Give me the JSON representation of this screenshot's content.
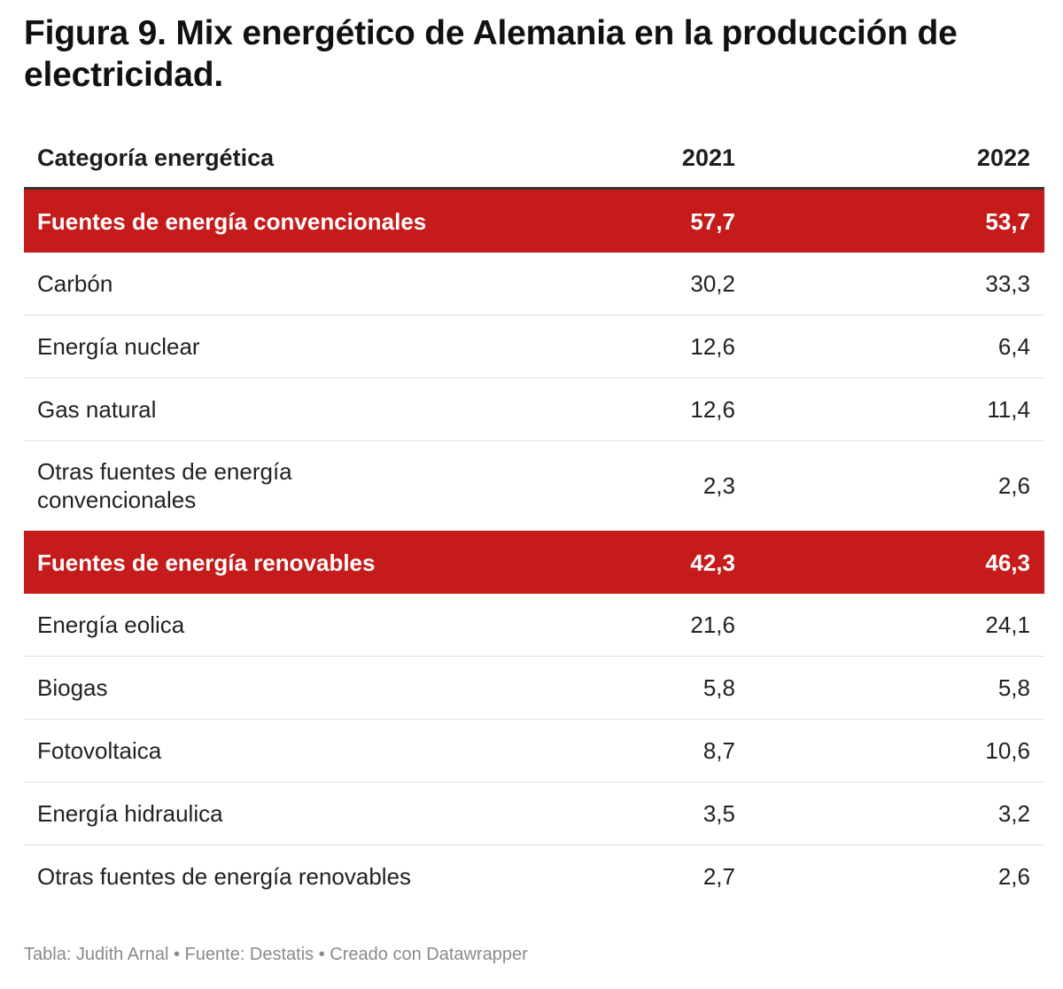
{
  "title": "Figura 9. Mix energético de Alemania en la producción de electricidad.",
  "footer": "Tabla: Judith Arnal • Fuente: Destatis • Creado con Datawrapper",
  "colors": {
    "group_row_background": "#c61b1b",
    "group_row_text": "#ffffff",
    "footer_text": "#8a8a8a"
  },
  "chart_data": {
    "type": "table",
    "title": "Figura 9. Mix energético de Alemania en la producción de electricidad.",
    "columns": [
      "Categoría energética",
      "2021",
      "2022"
    ],
    "rows": [
      {
        "category": "Fuentes de energía convencionales",
        "y2021": "57,7",
        "y2022": "53,7",
        "group": true
      },
      {
        "category": "Carbón",
        "y2021": "30,2",
        "y2022": "33,3",
        "group": false
      },
      {
        "category": "Energía nuclear",
        "y2021": "12,6",
        "y2022": "6,4",
        "group": false
      },
      {
        "category": "Gas natural",
        "y2021": "12,6",
        "y2022": "11,4",
        "group": false
      },
      {
        "category": "Otras fuentes de energía convencionales",
        "y2021": "2,3",
        "y2022": "2,6",
        "group": false
      },
      {
        "category": "Fuentes de energía renovables",
        "y2021": "42,3",
        "y2022": "46,3",
        "group": true
      },
      {
        "category": "Energía eolica",
        "y2021": "21,6",
        "y2022": "24,1",
        "group": false
      },
      {
        "category": "Biogas",
        "y2021": "5,8",
        "y2022": "5,8",
        "group": false
      },
      {
        "category": "Fotovoltaica",
        "y2021": "8,7",
        "y2022": "10,6",
        "group": false
      },
      {
        "category": "Energía hidraulica",
        "y2021": "3,5",
        "y2022": "3,2",
        "group": false
      },
      {
        "category": "Otras fuentes de energía renovables",
        "y2021": "2,7",
        "y2022": "2,6",
        "group": false
      }
    ]
  }
}
